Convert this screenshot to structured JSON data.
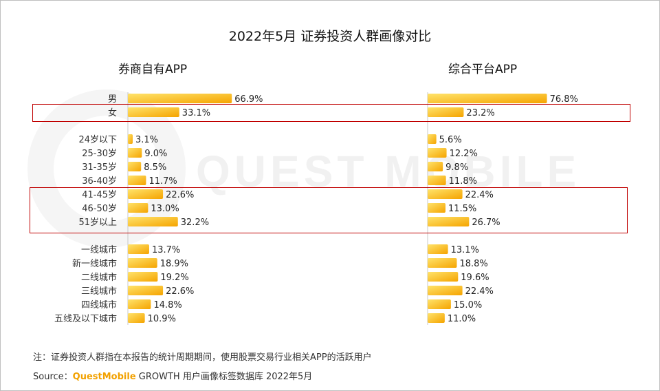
{
  "title": "2022年5月 证券投资人群画像对比",
  "watermark": "QUEST MOBILE",
  "note": "注：证券投资人群指在本报告的统计周期期间，使用股票交易行业相关APP的活跃用户",
  "source": {
    "label": "Source：",
    "brand": "QuestMobile",
    "text": " GROWTH 用户画像标签数据库 2022年5月"
  },
  "colors": {
    "bar_start": "#ffe36b",
    "bar_end": "#f5a400",
    "highlight": "#c00000"
  },
  "chart_data": {
    "type": "bar",
    "orientation": "horizontal",
    "categories": [
      "男",
      "女",
      "24岁以下",
      "25-30岁",
      "31-35岁",
      "36-40岁",
      "41-45岁",
      "46-50岁",
      "51岁以上",
      "一线城市",
      "新一线城市",
      "二线城市",
      "三线城市",
      "四线城市",
      "五线及以下城市"
    ],
    "groups": [
      {
        "name": "gender",
        "categories": [
          "男",
          "女"
        ]
      },
      {
        "name": "age",
        "categories": [
          "24岁以下",
          "25-30岁",
          "31-35岁",
          "36-40岁",
          "41-45岁",
          "46-50岁",
          "51岁以上"
        ]
      },
      {
        "name": "city",
        "categories": [
          "一线城市",
          "新一线城市",
          "二线城市",
          "三线城市",
          "四线城市",
          "五线及以下城市"
        ]
      }
    ],
    "series": [
      {
        "name": "券商自有APP",
        "values": [
          66.9,
          33.1,
          3.1,
          9.0,
          8.5,
          11.7,
          22.6,
          13.0,
          32.2,
          13.7,
          18.9,
          19.2,
          22.6,
          14.8,
          10.9
        ],
        "labels": [
          "66.9%",
          "33.1%",
          "3.1%",
          "9.0%",
          "8.5%",
          "11.7%",
          "22.6%",
          "13.0%",
          "32.2%",
          "13.7%",
          "18.9%",
          "19.2%",
          "22.6%",
          "14.8%",
          "10.9%"
        ]
      },
      {
        "name": "综合平台APP",
        "values": [
          76.8,
          23.2,
          5.6,
          12.2,
          9.8,
          11.8,
          22.4,
          11.5,
          26.7,
          13.1,
          18.8,
          19.6,
          22.4,
          15.0,
          11.0
        ],
        "labels": [
          "76.8%",
          "23.2%",
          "5.6%",
          "12.2%",
          "9.8%",
          "11.8%",
          "22.4%",
          "11.5%",
          "26.7%",
          "13.1%",
          "18.8%",
          "19.6%",
          "22.4%",
          "15.0%",
          "11.0%"
        ]
      }
    ],
    "highlighted_categories": [
      [
        "女"
      ],
      [
        "41-45岁",
        "46-50岁",
        "51岁以上"
      ]
    ],
    "unit": "%",
    "legend": "none",
    "grid": false
  }
}
